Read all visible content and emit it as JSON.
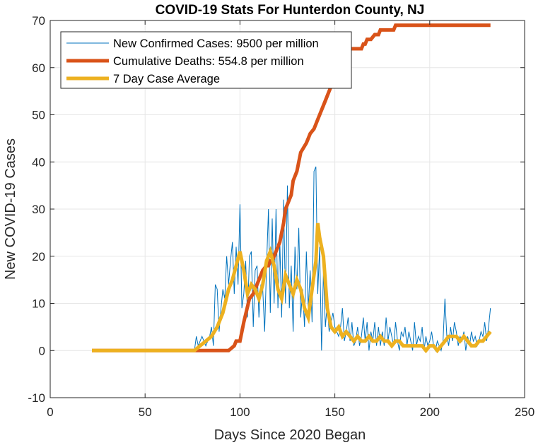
{
  "chart_data": {
    "type": "line",
    "title": "COVID-19 Stats For Hunterdon County, NJ",
    "xlabel": "Days Since 2020 Began",
    "ylabel": "New COVID-19 Cases",
    "xlim": [
      0,
      250
    ],
    "ylim": [
      -10,
      70
    ],
    "xticks": [
      0,
      50,
      100,
      150,
      200,
      250
    ],
    "yticks": [
      -10,
      0,
      10,
      20,
      30,
      40,
      50,
      60,
      70
    ],
    "grid": true,
    "legend_position": "top-left",
    "series": [
      {
        "name": "New Confirmed Cases: 9500 per million",
        "color": "#0072BD",
        "line_style": "thin",
        "x": [
          22,
          76,
          77,
          78,
          79,
          80,
          81,
          82,
          83,
          84,
          85,
          86,
          87,
          88,
          89,
          90,
          91,
          92,
          93,
          94,
          95,
          96,
          97,
          98,
          99,
          100,
          101,
          102,
          103,
          104,
          105,
          106,
          107,
          108,
          109,
          110,
          111,
          112,
          113,
          114,
          115,
          116,
          117,
          118,
          119,
          120,
          121,
          122,
          123,
          124,
          125,
          126,
          127,
          128,
          129,
          130,
          131,
          132,
          133,
          134,
          135,
          136,
          137,
          138,
          139,
          140,
          141,
          142,
          143,
          144,
          145,
          146,
          147,
          148,
          149,
          150,
          151,
          152,
          153,
          154,
          155,
          156,
          157,
          158,
          159,
          160,
          161,
          162,
          163,
          164,
          165,
          166,
          167,
          168,
          169,
          170,
          171,
          172,
          173,
          174,
          175,
          176,
          177,
          178,
          179,
          180,
          181,
          182,
          183,
          184,
          185,
          186,
          187,
          188,
          189,
          190,
          191,
          192,
          193,
          194,
          195,
          196,
          197,
          198,
          199,
          200,
          201,
          202,
          203,
          204,
          205,
          206,
          207,
          208,
          209,
          210,
          211,
          212,
          213,
          214,
          215,
          216,
          217,
          218,
          219,
          220,
          221,
          222,
          223,
          224,
          225,
          226,
          227,
          228,
          229,
          230,
          231,
          232
        ],
        "values": [
          0,
          0,
          3,
          1,
          2,
          3,
          2,
          1,
          2,
          3,
          5,
          1,
          14,
          13,
          4,
          9,
          13,
          11,
          20,
          14,
          19,
          23,
          12,
          22,
          14,
          31,
          9,
          12,
          19,
          7,
          20,
          21,
          5,
          17,
          18,
          7,
          14,
          13,
          4,
          18,
          30,
          8,
          28,
          10,
          30,
          9,
          23,
          7,
          32,
          10,
          35,
          9,
          18,
          4,
          22,
          13,
          26,
          7,
          13,
          5,
          21,
          9,
          17,
          6,
          38,
          39,
          12,
          22,
          0,
          17,
          5,
          10,
          4,
          6,
          8,
          5,
          4,
          3,
          5,
          9,
          2,
          4,
          7,
          2,
          6,
          1,
          2,
          5,
          1,
          3,
          7,
          2,
          6,
          0,
          4,
          2,
          6,
          1,
          5,
          1,
          4,
          1,
          7,
          2,
          5,
          3,
          1,
          6,
          2,
          0,
          4,
          3,
          5,
          1,
          4,
          2,
          0,
          6,
          1,
          3,
          2,
          5,
          0,
          3,
          1,
          2,
          4,
          1,
          0,
          2,
          1,
          0,
          2,
          11,
          3,
          1,
          5,
          2,
          6,
          4,
          1,
          3,
          2,
          4,
          0,
          3,
          1,
          4,
          2,
          3,
          1,
          2,
          4,
          3,
          6,
          2,
          5,
          9
        ]
      },
      {
        "name": "Cumulative Deaths: 554.8 per million",
        "color": "#D95319",
        "line_style": "thick",
        "x": [
          22,
          76,
          94,
          97,
          98,
          100,
          101,
          102,
          105,
          107,
          108,
          110,
          112,
          114,
          115,
          116,
          117,
          118,
          119,
          121,
          122,
          123,
          124,
          127,
          128,
          130,
          131,
          132,
          135,
          136,
          137,
          139,
          141,
          142,
          143,
          145,
          147,
          149,
          150,
          152,
          153,
          155,
          156,
          158,
          159,
          161,
          162,
          164,
          165,
          166,
          167,
          168,
          169,
          171,
          172,
          173,
          174,
          176,
          178,
          180,
          181,
          182,
          183,
          184,
          232
        ],
        "values": [
          0,
          0,
          0,
          1,
          2,
          2,
          4,
          6,
          11,
          12,
          13,
          15,
          17,
          18,
          18,
          19,
          19,
          20,
          21,
          23,
          25,
          27,
          30,
          33,
          36,
          38,
          40,
          42,
          44,
          45,
          46,
          47,
          49,
          50,
          51,
          53,
          55,
          57,
          59,
          60,
          61,
          62,
          63,
          64,
          64,
          64,
          64,
          64,
          65,
          65,
          66,
          66,
          66,
          67,
          67,
          67,
          68,
          68,
          68,
          68,
          68,
          69,
          69,
          69,
          69
        ]
      },
      {
        "name": "7 Day Case Average",
        "color": "#EDB120",
        "line_style": "thick",
        "x": [
          22,
          76,
          79,
          82,
          85,
          88,
          91,
          94,
          96,
          98,
          100,
          102,
          104,
          106,
          108,
          110,
          112,
          114,
          116,
          118,
          120,
          122,
          124,
          126,
          128,
          130,
          132,
          134,
          136,
          138,
          140,
          141,
          142,
          144,
          146,
          148,
          150,
          152,
          154,
          156,
          158,
          160,
          162,
          164,
          166,
          168,
          170,
          172,
          174,
          176,
          178,
          180,
          182,
          184,
          186,
          188,
          190,
          192,
          194,
          196,
          198,
          200,
          202,
          204,
          206,
          208,
          210,
          212,
          214,
          216,
          218,
          220,
          222,
          224,
          226,
          228,
          230,
          232
        ],
        "values": [
          0,
          0,
          1,
          2,
          3,
          5,
          8,
          13,
          15,
          18,
          21,
          17,
          12,
          14,
          13,
          11,
          14,
          19,
          21,
          18,
          13,
          11,
          16,
          14,
          12,
          15,
          13,
          9,
          7,
          13,
          19,
          27,
          24,
          20,
          9,
          5,
          4,
          5,
          3,
          4,
          3,
          2,
          3,
          2,
          2,
          3,
          2,
          2,
          3,
          2,
          2,
          1,
          2,
          2,
          1,
          1,
          1,
          1,
          1,
          1,
          0,
          1,
          1,
          0,
          1,
          2,
          3,
          3,
          3,
          2,
          3,
          2,
          1,
          1,
          2,
          2,
          3,
          4
        ]
      }
    ]
  }
}
